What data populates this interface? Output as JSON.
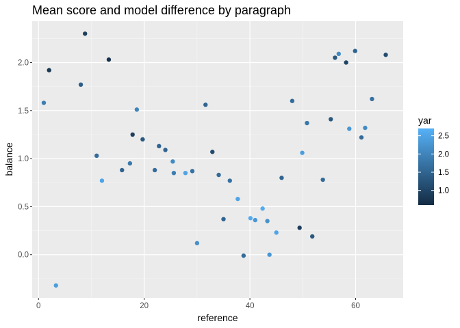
{
  "chart_data": {
    "type": "scatter",
    "title": "Mean score and model difference by paragraph",
    "xlabel": "reference",
    "ylabel": "balance",
    "xlim": [
      -1.2,
      69.0
    ],
    "ylim": [
      -0.45,
      2.43
    ],
    "x_ticks": [
      0,
      20,
      40,
      60
    ],
    "y_ticks": [
      0.0,
      0.5,
      1.0,
      1.5,
      2.0
    ],
    "x_tick_labels": [
      "0",
      "20",
      "40",
      "60"
    ],
    "y_tick_labels": [
      "0.0",
      "0.5",
      "1.0",
      "1.5",
      "2.0"
    ],
    "grid": true,
    "legend": {
      "title": "yar",
      "position": "right",
      "range": [
        0.6,
        2.7
      ],
      "ticks": [
        1.0,
        1.5,
        2.0,
        2.5
      ],
      "tick_labels": [
        "1.0",
        "1.5",
        "2.0",
        "2.5"
      ],
      "low_color": "#132B43",
      "high_color": "#56B1F7"
    },
    "colors": {
      "panel": "#EBEBEB",
      "grid_major": "#FFFFFF",
      "grid_minor": "#F5F5F5"
    },
    "points": [
      {
        "x": 1.0,
        "y": 1.58,
        "c": 1.9
      },
      {
        "x": 2.0,
        "y": 1.92,
        "c": 0.8
      },
      {
        "x": 3.3,
        "y": -0.32,
        "c": 2.4
      },
      {
        "x": 8.0,
        "y": 1.77,
        "c": 1.4
      },
      {
        "x": 8.8,
        "y": 2.3,
        "c": 0.9
      },
      {
        "x": 11.0,
        "y": 1.03,
        "c": 1.6
      },
      {
        "x": 12.0,
        "y": 0.77,
        "c": 2.5
      },
      {
        "x": 13.3,
        "y": 2.03,
        "c": 0.7
      },
      {
        "x": 15.8,
        "y": 0.88,
        "c": 1.5
      },
      {
        "x": 17.3,
        "y": 0.95,
        "c": 1.8
      },
      {
        "x": 17.8,
        "y": 1.25,
        "c": 0.9
      },
      {
        "x": 18.6,
        "y": 1.51,
        "c": 2.0
      },
      {
        "x": 19.7,
        "y": 1.2,
        "c": 1.3
      },
      {
        "x": 22.0,
        "y": 0.88,
        "c": 1.6
      },
      {
        "x": 22.8,
        "y": 1.13,
        "c": 1.5
      },
      {
        "x": 24.0,
        "y": 1.09,
        "c": 1.5
      },
      {
        "x": 25.4,
        "y": 0.97,
        "c": 2.1
      },
      {
        "x": 25.6,
        "y": 0.85,
        "c": 1.9
      },
      {
        "x": 27.8,
        "y": 0.85,
        "c": 2.5
      },
      {
        "x": 29.1,
        "y": 0.87,
        "c": 1.7
      },
      {
        "x": 30.0,
        "y": 0.12,
        "c": 2.2
      },
      {
        "x": 31.6,
        "y": 1.56,
        "c": 1.5
      },
      {
        "x": 32.9,
        "y": 1.07,
        "c": 1.1
      },
      {
        "x": 34.1,
        "y": 0.83,
        "c": 1.6
      },
      {
        "x": 35.0,
        "y": 0.37,
        "c": 1.5
      },
      {
        "x": 36.2,
        "y": 0.77,
        "c": 1.7
      },
      {
        "x": 37.7,
        "y": 0.58,
        "c": 2.5
      },
      {
        "x": 38.8,
        "y": -0.01,
        "c": 1.6
      },
      {
        "x": 40.1,
        "y": 0.38,
        "c": 2.6
      },
      {
        "x": 41.0,
        "y": 0.36,
        "c": 2.3
      },
      {
        "x": 42.4,
        "y": 0.48,
        "c": 2.6
      },
      {
        "x": 43.3,
        "y": 0.35,
        "c": 2.2
      },
      {
        "x": 43.7,
        "y": 0.0,
        "c": 2.3
      },
      {
        "x": 45.0,
        "y": 0.23,
        "c": 2.5
      },
      {
        "x": 46.0,
        "y": 0.8,
        "c": 1.5
      },
      {
        "x": 48.0,
        "y": 1.6,
        "c": 1.6
      },
      {
        "x": 49.4,
        "y": 0.28,
        "c": 0.9
      },
      {
        "x": 49.9,
        "y": 1.06,
        "c": 2.4
      },
      {
        "x": 50.8,
        "y": 1.37,
        "c": 1.8
      },
      {
        "x": 51.8,
        "y": 0.19,
        "c": 1.3
      },
      {
        "x": 53.8,
        "y": 0.78,
        "c": 1.6
      },
      {
        "x": 55.3,
        "y": 1.41,
        "c": 1.3
      },
      {
        "x": 56.1,
        "y": 2.05,
        "c": 1.3
      },
      {
        "x": 56.8,
        "y": 2.09,
        "c": 2.1
      },
      {
        "x": 58.2,
        "y": 2.0,
        "c": 1.0
      },
      {
        "x": 58.8,
        "y": 1.31,
        "c": 2.3
      },
      {
        "x": 59.9,
        "y": 2.12,
        "c": 1.5
      },
      {
        "x": 61.1,
        "y": 1.22,
        "c": 1.6
      },
      {
        "x": 61.8,
        "y": 1.32,
        "c": 2.1
      },
      {
        "x": 63.1,
        "y": 1.62,
        "c": 1.7
      },
      {
        "x": 65.7,
        "y": 2.08,
        "c": 1.1
      }
    ]
  }
}
